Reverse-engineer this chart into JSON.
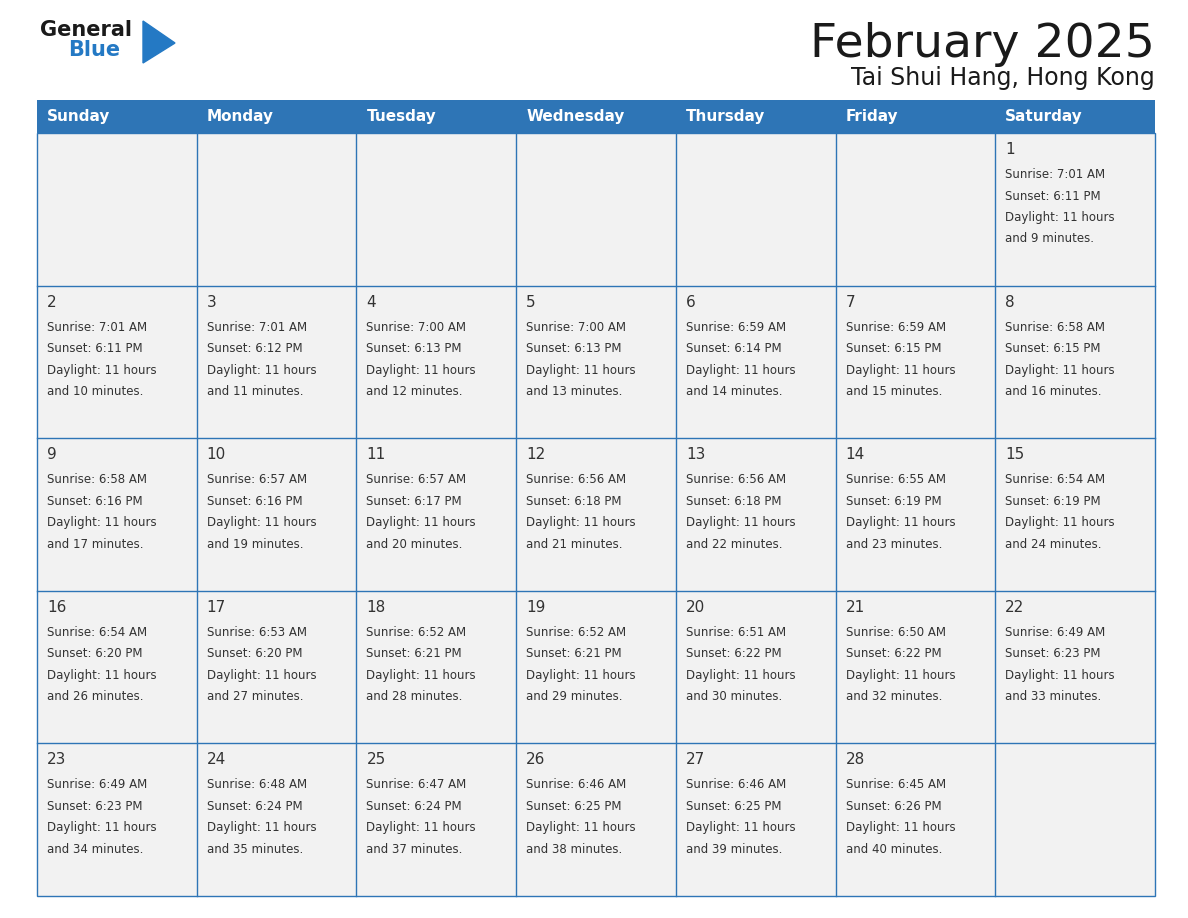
{
  "title": "February 2025",
  "subtitle": "Tai Shui Hang, Hong Kong",
  "days_of_week": [
    "Sunday",
    "Monday",
    "Tuesday",
    "Wednesday",
    "Thursday",
    "Friday",
    "Saturday"
  ],
  "header_bg": "#2E75B6",
  "header_text": "#FFFFFF",
  "cell_bg": "#F2F2F2",
  "cell_bg_white": "#FFFFFF",
  "border_color": "#2E75B6",
  "day_num_color": "#333333",
  "info_color": "#333333",
  "title_color": "#1a1a1a",
  "logo_general_color": "#1a1a1a",
  "logo_blue_color": "#2479C4",
  "calendar": [
    [
      null,
      null,
      null,
      null,
      null,
      null,
      1
    ],
    [
      2,
      3,
      4,
      5,
      6,
      7,
      8
    ],
    [
      9,
      10,
      11,
      12,
      13,
      14,
      15
    ],
    [
      16,
      17,
      18,
      19,
      20,
      21,
      22
    ],
    [
      23,
      24,
      25,
      26,
      27,
      28,
      null
    ]
  ],
  "sunrise": {
    "1": "7:01 AM",
    "2": "7:01 AM",
    "3": "7:01 AM",
    "4": "7:00 AM",
    "5": "7:00 AM",
    "6": "6:59 AM",
    "7": "6:59 AM",
    "8": "6:58 AM",
    "9": "6:58 AM",
    "10": "6:57 AM",
    "11": "6:57 AM",
    "12": "6:56 AM",
    "13": "6:56 AM",
    "14": "6:55 AM",
    "15": "6:54 AM",
    "16": "6:54 AM",
    "17": "6:53 AM",
    "18": "6:52 AM",
    "19": "6:52 AM",
    "20": "6:51 AM",
    "21": "6:50 AM",
    "22": "6:49 AM",
    "23": "6:49 AM",
    "24": "6:48 AM",
    "25": "6:47 AM",
    "26": "6:46 AM",
    "27": "6:46 AM",
    "28": "6:45 AM"
  },
  "sunset": {
    "1": "6:11 PM",
    "2": "6:11 PM",
    "3": "6:12 PM",
    "4": "6:13 PM",
    "5": "6:13 PM",
    "6": "6:14 PM",
    "7": "6:15 PM",
    "8": "6:15 PM",
    "9": "6:16 PM",
    "10": "6:16 PM",
    "11": "6:17 PM",
    "12": "6:18 PM",
    "13": "6:18 PM",
    "14": "6:19 PM",
    "15": "6:19 PM",
    "16": "6:20 PM",
    "17": "6:20 PM",
    "18": "6:21 PM",
    "19": "6:21 PM",
    "20": "6:22 PM",
    "21": "6:22 PM",
    "22": "6:23 PM",
    "23": "6:23 PM",
    "24": "6:24 PM",
    "25": "6:24 PM",
    "26": "6:25 PM",
    "27": "6:25 PM",
    "28": "6:26 PM"
  },
  "daylight": {
    "1": "11 hours and 9 minutes.",
    "2": "11 hours and 10 minutes.",
    "3": "11 hours and 11 minutes.",
    "4": "11 hours and 12 minutes.",
    "5": "11 hours and 13 minutes.",
    "6": "11 hours and 14 minutes.",
    "7": "11 hours and 15 minutes.",
    "8": "11 hours and 16 minutes.",
    "9": "11 hours and 17 minutes.",
    "10": "11 hours and 19 minutes.",
    "11": "11 hours and 20 minutes.",
    "12": "11 hours and 21 minutes.",
    "13": "11 hours and 22 minutes.",
    "14": "11 hours and 23 minutes.",
    "15": "11 hours and 24 minutes.",
    "16": "11 hours and 26 minutes.",
    "17": "11 hours and 27 minutes.",
    "18": "11 hours and 28 minutes.",
    "19": "11 hours and 29 minutes.",
    "20": "11 hours and 30 minutes.",
    "21": "11 hours and 32 minutes.",
    "22": "11 hours and 33 minutes.",
    "23": "11 hours and 34 minutes.",
    "24": "11 hours and 35 minutes.",
    "25": "11 hours and 37 minutes.",
    "26": "11 hours and 38 minutes.",
    "27": "11 hours and 39 minutes.",
    "28": "11 hours and 40 minutes."
  }
}
